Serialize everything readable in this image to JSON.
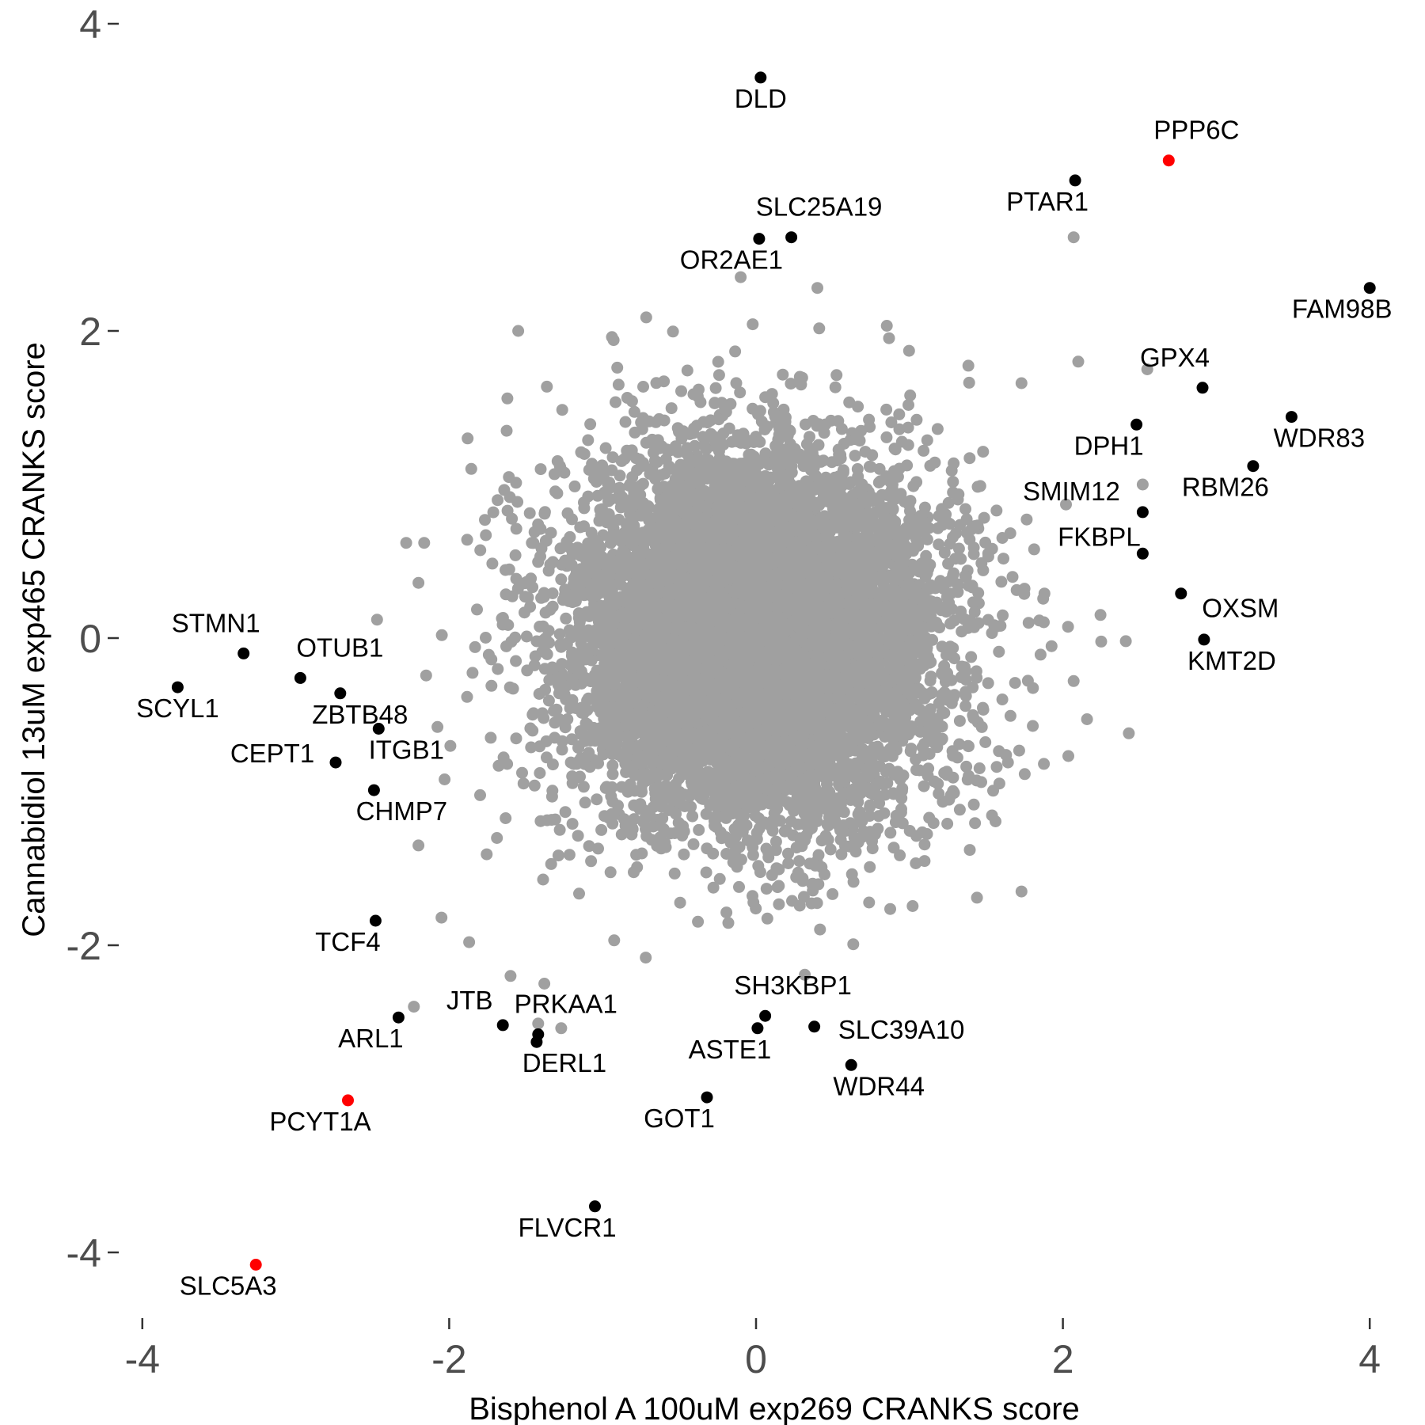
{
  "chart_data": {
    "type": "scatter",
    "xlabel": "Bisphenol A 100uM exp269 CRANKS score",
    "ylabel": "Cannabidiol 13uM exp465 CRANKS score",
    "xlim": [
      -4.0,
      4.1
    ],
    "ylim": [
      -4.4,
      4.1
    ],
    "xticks": [
      -4,
      -2,
      0,
      2,
      4
    ],
    "yticks": [
      4,
      2,
      0,
      -2,
      -4
    ],
    "xtick_labels": [
      "-4",
      "-2",
      "0",
      "2",
      "4"
    ],
    "ytick_labels": [
      "4",
      "2",
      "0",
      "-2",
      "-4"
    ],
    "grid": false,
    "legend": "none",
    "colors": {
      "background": "#A0A0A0",
      "labeled": "#000000",
      "highlighted": "#FF0000"
    },
    "background_points": {
      "description_count": 9000,
      "center": [
        0.0,
        0.0
      ],
      "sd": [
        0.6,
        0.6
      ],
      "extra": [
        {
          "x": 2.07,
          "y": 2.61
        },
        {
          "x": -0.1,
          "y": 2.35
        },
        {
          "x": 0.4,
          "y": 2.28
        },
        {
          "x": 2.1,
          "y": 1.8
        },
        {
          "x": 2.55,
          "y": 1.75
        },
        {
          "x": 1.73,
          "y": 1.66
        },
        {
          "x": 2.52,
          "y": 1.0
        },
        {
          "x": 2.02,
          "y": 0.87
        },
        {
          "x": 1.88,
          "y": 0.29
        },
        {
          "x": 2.41,
          "y": -0.02
        },
        {
          "x": 2.43,
          "y": -0.62
        },
        {
          "x": 2.07,
          "y": -0.28
        },
        {
          "x": 1.73,
          "y": -1.65
        },
        {
          "x": 1.44,
          "y": -1.69
        },
        {
          "x": -1.55,
          "y": 2.0
        },
        {
          "x": -1.88,
          "y": 1.3
        },
        {
          "x": -2.28,
          "y": 0.62
        },
        {
          "x": -2.2,
          "y": 0.36
        },
        {
          "x": -2.47,
          "y": 0.12
        },
        {
          "x": -2.03,
          "y": -0.92
        },
        {
          "x": -2.2,
          "y": -1.35
        },
        {
          "x": -2.05,
          "y": -1.82
        },
        {
          "x": -1.87,
          "y": -1.98
        },
        {
          "x": -1.6,
          "y": -2.2
        },
        {
          "x": -1.38,
          "y": -2.25
        },
        {
          "x": -2.23,
          "y": -2.4
        },
        {
          "x": -1.27,
          "y": -2.54
        },
        {
          "x": -1.42,
          "y": -2.51
        }
      ]
    },
    "labeled_points": [
      {
        "label": "DLD",
        "x": 0.03,
        "y": 3.65,
        "highlight": false
      },
      {
        "label": "PPP6C",
        "x": 2.69,
        "y": 3.11,
        "highlight": true
      },
      {
        "label": "PTAR1",
        "x": 2.08,
        "y": 2.98,
        "highlight": false
      },
      {
        "label": "SLC25A19",
        "x": 0.23,
        "y": 2.61,
        "highlight": false
      },
      {
        "label": "OR2AE1",
        "x": 0.02,
        "y": 2.6,
        "highlight": false
      },
      {
        "label": "FAM98B",
        "x": 4.0,
        "y": 2.28,
        "highlight": false
      },
      {
        "label": "GPX4",
        "x": 2.91,
        "y": 1.63,
        "highlight": false
      },
      {
        "label": "WDR83",
        "x": 3.49,
        "y": 1.44,
        "highlight": false
      },
      {
        "label": "DPH1",
        "x": 2.48,
        "y": 1.39,
        "highlight": false
      },
      {
        "label": "RBM26",
        "x": 3.24,
        "y": 1.12,
        "highlight": false
      },
      {
        "label": "SMIM12",
        "x": 2.52,
        "y": 0.82,
        "highlight": false
      },
      {
        "label": "FKBPL",
        "x": 2.52,
        "y": 0.55,
        "highlight": false
      },
      {
        "label": "OXSM",
        "x": 2.77,
        "y": 0.29,
        "highlight": false
      },
      {
        "label": "KMT2D",
        "x": 2.92,
        "y": -0.01,
        "highlight": false
      },
      {
        "label": "STMN1",
        "x": -3.34,
        "y": -0.1,
        "highlight": false
      },
      {
        "label": "OTUB1",
        "x": -2.97,
        "y": -0.26,
        "highlight": false
      },
      {
        "label": "SCYL1",
        "x": -3.77,
        "y": -0.32,
        "highlight": false
      },
      {
        "label": "ZBTB48",
        "x": -2.71,
        "y": -0.36,
        "highlight": false
      },
      {
        "label": "ITGB1",
        "x": -2.46,
        "y": -0.59,
        "highlight": false
      },
      {
        "label": "CEPT1",
        "x": -2.74,
        "y": -0.81,
        "highlight": false
      },
      {
        "label": "CHMP7",
        "x": -2.49,
        "y": -0.99,
        "highlight": false
      },
      {
        "label": "TCF4",
        "x": -2.48,
        "y": -1.84,
        "highlight": false
      },
      {
        "label": "ARL1",
        "x": -2.33,
        "y": -2.47,
        "highlight": false
      },
      {
        "label": "JTB",
        "x": -1.65,
        "y": -2.52,
        "highlight": false
      },
      {
        "label": "PRKAA1",
        "x": -1.42,
        "y": -2.58,
        "highlight": false
      },
      {
        "label": "DERL1",
        "x": -1.43,
        "y": -2.63,
        "highlight": false
      },
      {
        "label": "SH3KBP1",
        "x": 0.06,
        "y": -2.46,
        "highlight": false
      },
      {
        "label": "ASTE1",
        "x": 0.01,
        "y": -2.54,
        "highlight": false
      },
      {
        "label": "SLC39A10",
        "x": 0.38,
        "y": -2.53,
        "highlight": false
      },
      {
        "label": "WDR44",
        "x": 0.62,
        "y": -2.78,
        "highlight": false
      },
      {
        "label": "GOT1",
        "x": -0.32,
        "y": -2.99,
        "highlight": false
      },
      {
        "label": "PCYT1A",
        "x": -2.66,
        "y": -3.01,
        "highlight": true
      },
      {
        "label": "FLVCR1",
        "x": -1.05,
        "y": -3.7,
        "highlight": false
      },
      {
        "label": "SLC5A3",
        "x": -3.26,
        "y": -4.08,
        "highlight": true
      }
    ]
  }
}
